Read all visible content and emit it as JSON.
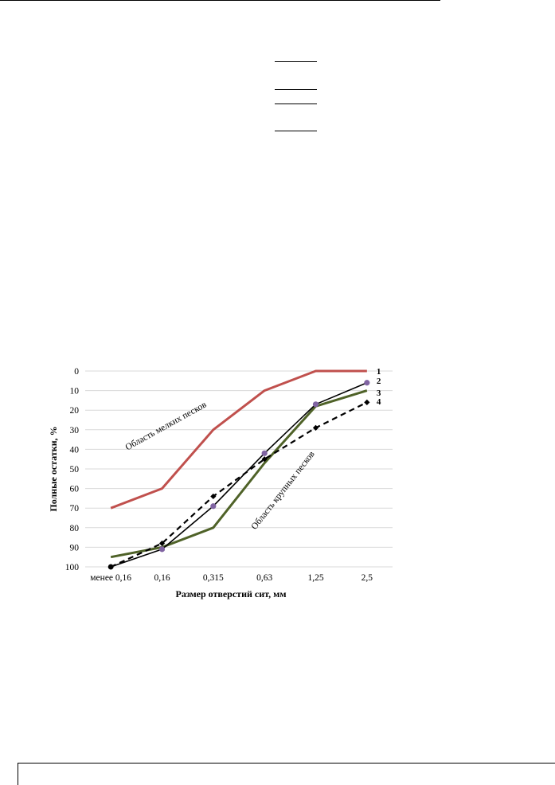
{
  "chart_data": {
    "type": "line",
    "title": "",
    "xlabel": "Размер отверстий сит, мм",
    "ylabel": "Полные остатки, %",
    "categories": [
      "менее 0,16",
      "0,16",
      "0,315",
      "0,63",
      "1,25",
      "2,5"
    ],
    "y_ticks": [
      "0",
      "10",
      "20",
      "30",
      "40",
      "50",
      "60",
      "70",
      "80",
      "90",
      "100"
    ],
    "ylim": [
      0,
      100
    ],
    "y_inverted": true,
    "grid": true,
    "legend": "none",
    "series": [
      {
        "name": "1",
        "values": [
          70,
          60,
          30,
          10,
          0,
          0
        ],
        "color": "#c0504d",
        "style": "solid",
        "marker": "none"
      },
      {
        "name": "2",
        "values": [
          100,
          91,
          69,
          42,
          17,
          6
        ],
        "color": "#000000",
        "style": "solid",
        "marker": "circle",
        "marker_color": "#8064a2"
      },
      {
        "name": "3",
        "values": [
          95,
          90,
          80,
          47,
          18,
          10
        ],
        "color": "#4f6228",
        "style": "solid",
        "marker": "none"
      },
      {
        "name": "4",
        "values": [
          100,
          88,
          64,
          45,
          29,
          16
        ],
        "color": "#000000",
        "style": "dashed",
        "marker": "diamond"
      }
    ],
    "annotations": [
      "Область мелких песков",
      "Область крупных песков"
    ]
  }
}
